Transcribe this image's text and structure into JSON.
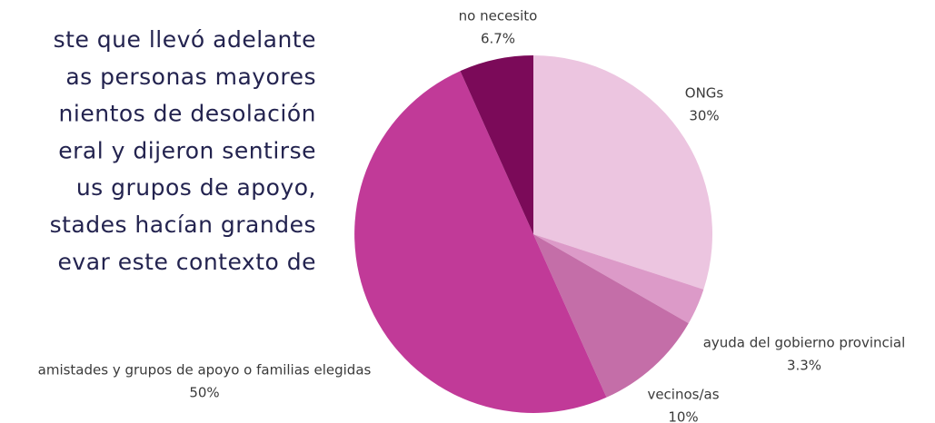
{
  "paragraph": {
    "lines": [
      "ste que llevó adelante",
      "as personas mayores",
      "nientos de desolación",
      "eral y dijeron sentirse",
      "us grupos de apoyo,",
      "stades hacían grandes",
      "evar este contexto de"
    ]
  },
  "chart_data": {
    "type": "pie",
    "categories": [
      "ONGs",
      "ayuda del gobierno provincial",
      "vecinos/as",
      "amistades y grupos de apoyo o familias elegidas",
      "no necesito"
    ],
    "values": [
      30,
      3.3,
      10,
      50,
      6.7
    ],
    "value_labels": [
      "30%",
      "3.3%",
      "10%",
      "50%",
      "6.7%"
    ],
    "colors": [
      "#ecc5e0",
      "#dc9ac8",
      "#c46ea8",
      "#c13a98",
      "#7b0a59"
    ]
  }
}
